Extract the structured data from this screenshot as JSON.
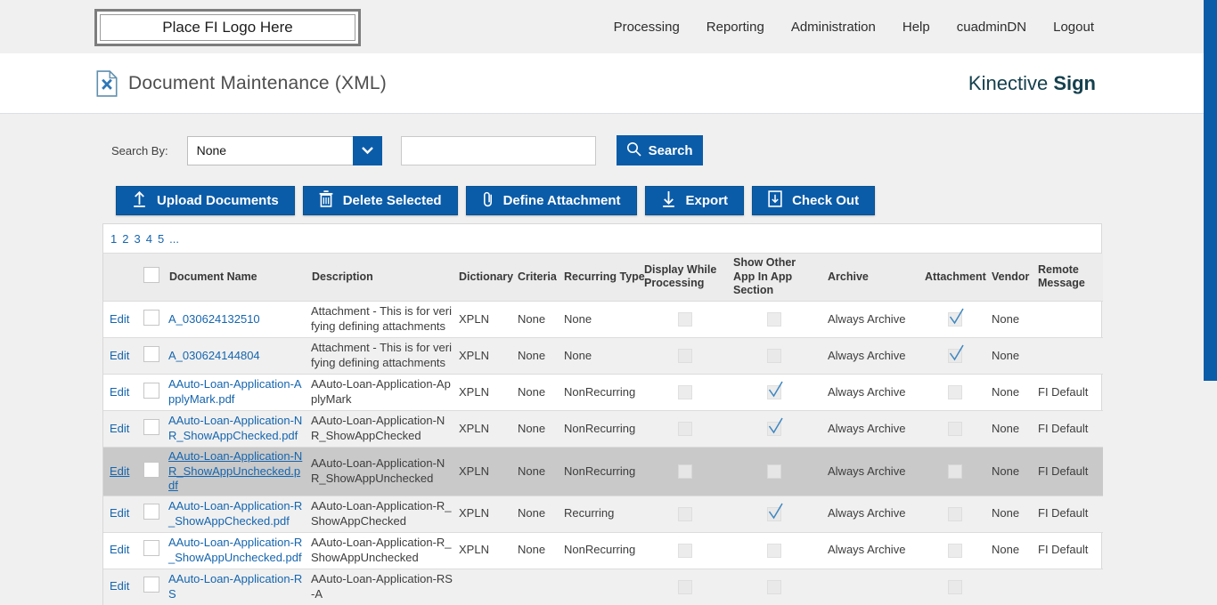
{
  "topnav": {
    "logo_placeholder": "Place FI Logo Here",
    "items": [
      "Processing",
      "Reporting",
      "Administration",
      "Help",
      "cuadminDN",
      "Logout"
    ]
  },
  "header": {
    "title": "Document Maintenance (XML)",
    "title_icon": "xml-document-icon",
    "brand": {
      "regular": "Kinective",
      "bold": "Sign"
    }
  },
  "search": {
    "label": "Search By:",
    "selected_option": "None",
    "dropdown_icon": "chevron-down-icon",
    "input_value": "",
    "input_placeholder": "",
    "button_label": "Search",
    "button_icon": "search-icon"
  },
  "toolbar": {
    "buttons": [
      {
        "label": "Upload Documents",
        "icon": "upload-icon"
      },
      {
        "label": "Delete Selected",
        "icon": "trash-icon"
      },
      {
        "label": "Define Attachment",
        "icon": "paperclip-icon"
      },
      {
        "label": "Export",
        "icon": "download-icon"
      },
      {
        "label": "Check Out",
        "icon": "checkout-icon"
      }
    ]
  },
  "pagination": {
    "pages": [
      "1",
      "2",
      "3",
      "4",
      "5",
      "..."
    ]
  },
  "table": {
    "columns": [
      "",
      "",
      "Document Name",
      "Description",
      "Dictionary",
      "Criteria",
      "Recurring Type",
      "Display While Processing",
      "Show Other App In App Section",
      "Archive",
      "Attachment",
      "Vendor",
      "Remote Message"
    ],
    "rows": [
      {
        "edit": "Edit",
        "name": "A_030624132510",
        "description": "Attachment - This is for verifying defining attachments",
        "dictionary": "XPLN",
        "criteria": "None",
        "recurring_type": "None",
        "display_while_processing": false,
        "show_other_app": false,
        "archive": "Always Archive",
        "attachment": true,
        "vendor": "None",
        "remote_message": "",
        "highlighted": false
      },
      {
        "edit": "Edit",
        "name": "A_030624144804",
        "description": "Attachment - This is for verifying defining attachments",
        "dictionary": "XPLN",
        "criteria": "None",
        "recurring_type": "None",
        "display_while_processing": false,
        "show_other_app": false,
        "archive": "Always Archive",
        "attachment": true,
        "vendor": "None",
        "remote_message": "",
        "highlighted": false
      },
      {
        "edit": "Edit",
        "name": "AAuto-Loan-Application-ApplyMark.pdf",
        "description": "AAuto-Loan-Application-ApplyMark",
        "dictionary": "XPLN",
        "criteria": "None",
        "recurring_type": "NonRecurring",
        "display_while_processing": false,
        "show_other_app": true,
        "archive": "Always Archive",
        "attachment": false,
        "vendor": "None",
        "remote_message": "FI Default",
        "highlighted": false
      },
      {
        "edit": "Edit",
        "name": "AAuto-Loan-Application-NR_ShowAppChecked.pdf",
        "description": "AAuto-Loan-Application-NR_ShowAppChecked",
        "dictionary": "XPLN",
        "criteria": "None",
        "recurring_type": "NonRecurring",
        "display_while_processing": false,
        "show_other_app": true,
        "archive": "Always Archive",
        "attachment": false,
        "vendor": "None",
        "remote_message": "FI Default",
        "highlighted": false
      },
      {
        "edit": "Edit",
        "name": "AAuto-Loan-Application-NR_ShowAppUnchecked.pdf",
        "description": "AAuto-Loan-Application-NR_ShowAppUnchecked",
        "dictionary": "XPLN",
        "criteria": "None",
        "recurring_type": "NonRecurring",
        "display_while_processing": false,
        "show_other_app": false,
        "archive": "Always Archive",
        "attachment": false,
        "vendor": "None",
        "remote_message": "FI Default",
        "highlighted": true
      },
      {
        "edit": "Edit",
        "name": "AAuto-Loan-Application-R_ShowAppChecked.pdf",
        "description": "AAuto-Loan-Application-R_ShowAppChecked",
        "dictionary": "XPLN",
        "criteria": "None",
        "recurring_type": "Recurring",
        "display_while_processing": false,
        "show_other_app": true,
        "archive": "Always Archive",
        "attachment": false,
        "vendor": "None",
        "remote_message": "FI Default",
        "highlighted": false
      },
      {
        "edit": "Edit",
        "name": "AAuto-Loan-Application-R_ShowAppUnchecked.pdf",
        "description": "AAuto-Loan-Application-R_ShowAppUnchecked",
        "dictionary": "XPLN",
        "criteria": "None",
        "recurring_type": "NonRecurring",
        "display_while_processing": false,
        "show_other_app": false,
        "archive": "Always Archive",
        "attachment": false,
        "vendor": "None",
        "remote_message": "FI Default",
        "highlighted": false
      },
      {
        "edit": "Edit",
        "name": "AAuto-Loan-Application-RS",
        "description": "AAuto-Loan-Application-RS-A",
        "dictionary": "",
        "criteria": "",
        "recurring_type": "",
        "display_while_processing": false,
        "show_other_app": false,
        "archive": "",
        "attachment": false,
        "vendor": "",
        "remote_message": "",
        "highlighted": false
      }
    ]
  },
  "colors": {
    "accent_blue": "#0b5ca8",
    "link_blue": "#1565ae",
    "brand_teal": "#15404e",
    "check_blue": "#3e86c0",
    "row_highlight": "#c9c9c9",
    "page_background": "#f0f0f0"
  }
}
